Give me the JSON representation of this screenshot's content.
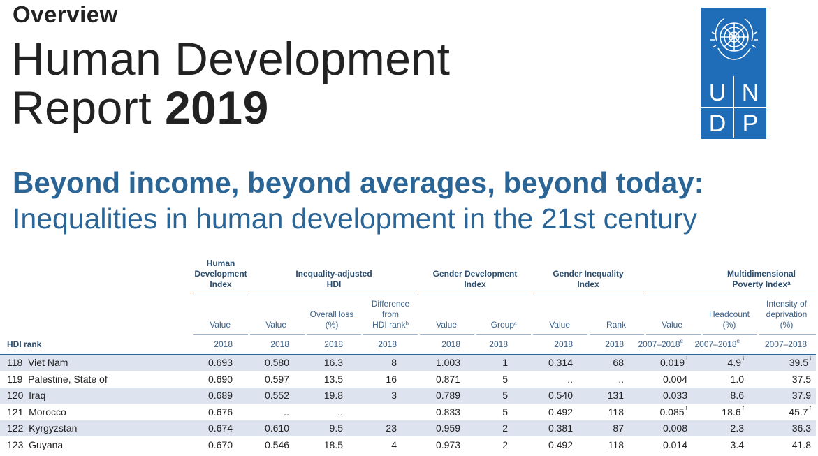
{
  "header": {
    "overview": "Overview",
    "title_line1": "Human Development",
    "title_line2_regular": "Report",
    "title_line2_bold": "2019"
  },
  "logo": {
    "name": "UNDP",
    "letters": [
      "U",
      "N",
      "D",
      "P"
    ],
    "color": "#1f6db8"
  },
  "subtitle": {
    "line1": "Beyond income, beyond averages, beyond today:",
    "line2": "Inequalities in human development in the 21st century",
    "color": "#2b6596"
  },
  "table": {
    "groups": {
      "hdi": [
        "Human",
        "Development",
        "Index"
      ],
      "ihdi": [
        "Inequality-adjusted",
        "HDI"
      ],
      "gdi": [
        "Gender Development",
        "Index"
      ],
      "gii": [
        "Gender Inequality",
        "Index"
      ],
      "mpi": [
        "Multidimensional",
        "Poverty Index"
      ],
      "mpi_sup": "a"
    },
    "subheaders": {
      "hdi_value": "Value",
      "ihdi_value": "Value",
      "ihdi_loss": [
        "Overall loss",
        "(%)"
      ],
      "ihdi_diff": [
        "Difference",
        "from",
        "HDI rank"
      ],
      "ihdi_diff_sup": "b",
      "gdi_value": "Value",
      "gdi_group": "Group",
      "gdi_group_sup": "c",
      "gii_value": "Value",
      "gii_rank": "Rank",
      "mpi_value": "Value",
      "mpi_headcount": [
        "Headcount",
        "(%)"
      ],
      "mpi_intensity": [
        "Intensity of",
        "deprivation",
        "(%)"
      ]
    },
    "rank_label": "HDI rank",
    "years": [
      "2018",
      "2018",
      "2018",
      "2018",
      "2018",
      "2018",
      "2018",
      "2018",
      "2007–2018",
      "2007–2018",
      "2007–2018"
    ],
    "year_sups": [
      "",
      "",
      "",
      "",
      "",
      "",
      "",
      "",
      "e",
      "e",
      ""
    ],
    "rows": [
      {
        "rank": "118",
        "country": "Viet Nam",
        "hdi": "0.693",
        "ihdi": "0.580",
        "loss": "16.3",
        "diff": "8",
        "gdi": "1.003",
        "group": "1",
        "gii": "0.314",
        "gii_rank": "68",
        "mpi": "0.019",
        "mpi_sup": "i",
        "head": "4.9",
        "head_sup": "i",
        "intensity": "39.5",
        "int_sup": "i"
      },
      {
        "rank": "119",
        "country": "Palestine, State of",
        "hdi": "0.690",
        "ihdi": "0.597",
        "loss": "13.5",
        "diff": "16",
        "gdi": "0.871",
        "group": "5",
        "gii": "..",
        "gii_rank": "..",
        "mpi": "0.004",
        "mpi_sup": "",
        "head": "1.0",
        "head_sup": "",
        "intensity": "37.5",
        "int_sup": ""
      },
      {
        "rank": "120",
        "country": "Iraq",
        "hdi": "0.689",
        "ihdi": "0.552",
        "loss": "19.8",
        "diff": "3",
        "gdi": "0.789",
        "group": "5",
        "gii": "0.540",
        "gii_rank": "131",
        "mpi": "0.033",
        "mpi_sup": "",
        "head": "8.6",
        "head_sup": "",
        "intensity": "37.9",
        "int_sup": ""
      },
      {
        "rank": "121",
        "country": "Morocco",
        "hdi": "0.676",
        "ihdi": "..",
        "loss": "..",
        "diff": "",
        "gdi": "0.833",
        "group": "5",
        "gii": "0.492",
        "gii_rank": "118",
        "mpi": "0.085",
        "mpi_sup": "f",
        "head": "18.6",
        "head_sup": "f",
        "intensity": "45.7",
        "int_sup": "f"
      },
      {
        "rank": "122",
        "country": "Kyrgyzstan",
        "hdi": "0.674",
        "ihdi": "0.610",
        "loss": "9.5",
        "diff": "23",
        "gdi": "0.959",
        "group": "2",
        "gii": "0.381",
        "gii_rank": "87",
        "mpi": "0.008",
        "mpi_sup": "",
        "head": "2.3",
        "head_sup": "",
        "intensity": "36.3",
        "int_sup": ""
      },
      {
        "rank": "123",
        "country": "Guyana",
        "hdi": "0.670",
        "ihdi": "0.546",
        "loss": "18.5",
        "diff": "4",
        "gdi": "0.973",
        "group": "2",
        "gii": "0.492",
        "gii_rank": "118",
        "mpi": "0.014",
        "mpi_sup": "",
        "head": "3.4",
        "head_sup": "",
        "intensity": "41.8",
        "int_sup": ""
      }
    ]
  }
}
